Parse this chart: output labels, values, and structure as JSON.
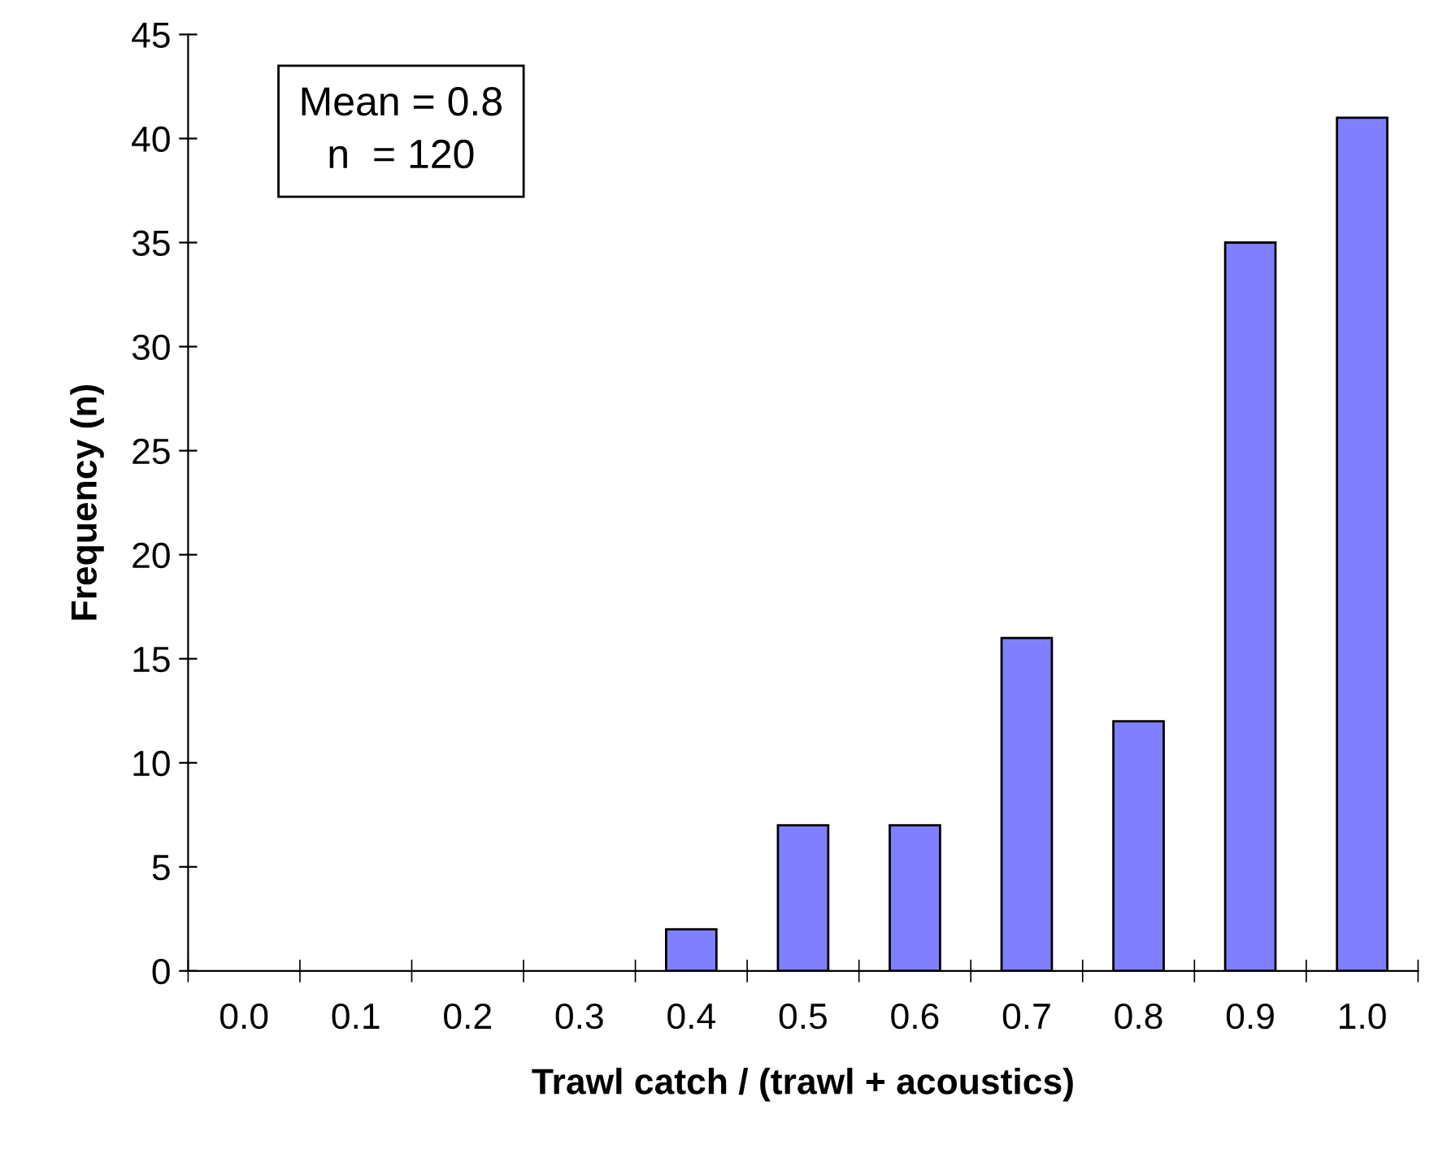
{
  "chart_data": {
    "type": "bar",
    "xlabel": "Trawl catch / (trawl + acoustics)",
    "ylabel": "Frequency (n)",
    "categories": [
      "0.0",
      "0.1",
      "0.2",
      "0.3",
      "0.4",
      "0.5",
      "0.6",
      "0.7",
      "0.8",
      "0.9",
      "1.0"
    ],
    "values": [
      0,
      0,
      0,
      0,
      2,
      7,
      7,
      16,
      12,
      35,
      41
    ],
    "color": "#8080ff",
    "ylim": [
      0,
      45
    ],
    "yticks": [
      0,
      5,
      10,
      15,
      20,
      25,
      30,
      35,
      40,
      45
    ],
    "grid": false,
    "annotations": [
      "Mean = 0.8",
      "n  = 120"
    ]
  }
}
